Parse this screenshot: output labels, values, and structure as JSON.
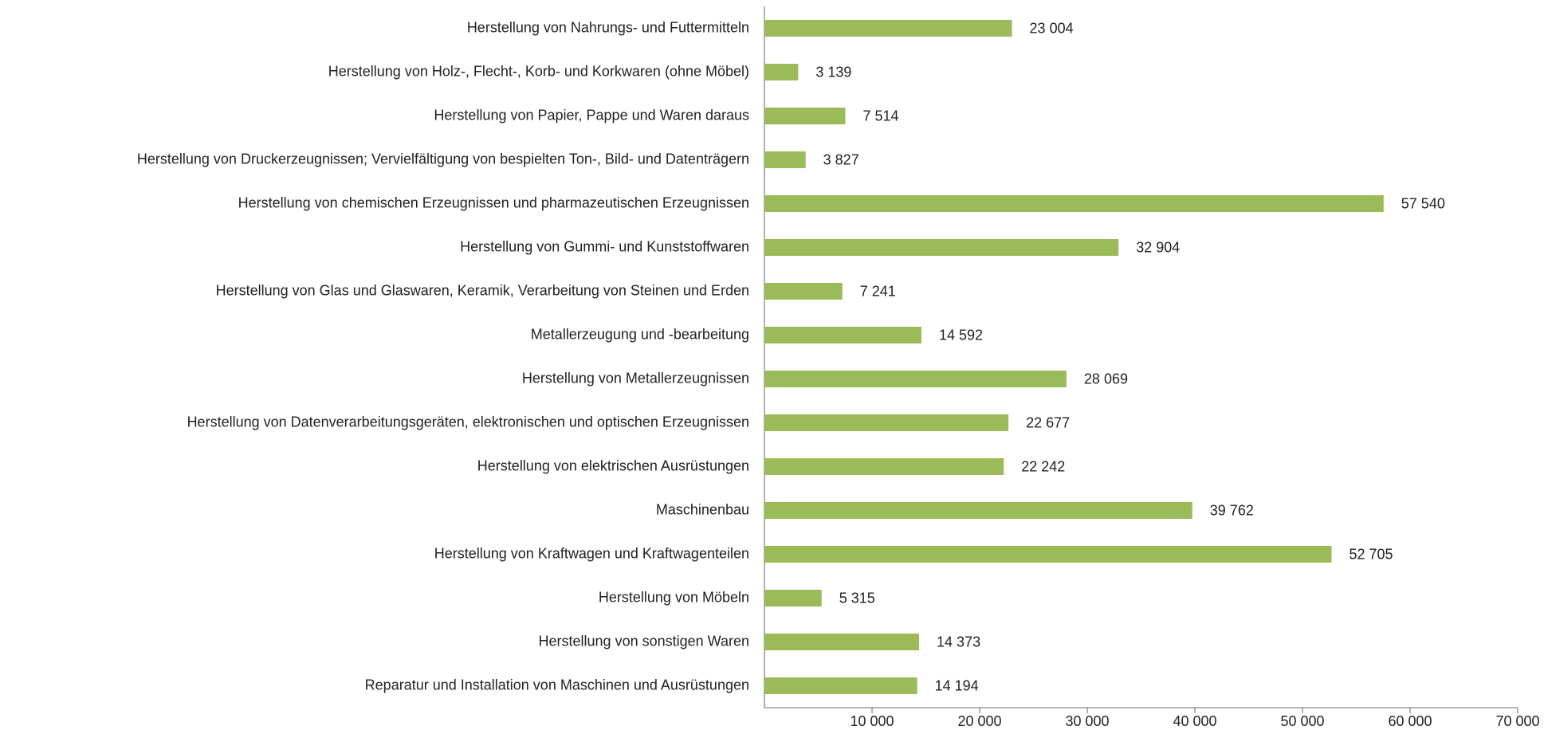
{
  "chart_data": {
    "type": "barh",
    "categories": [
      "Herstellung von Nahrungs- und Futtermitteln",
      "Herstellung von Holz-, Flecht-, Korb- und Korkwaren (ohne Möbel)",
      "Herstellung von Papier, Pappe und Waren daraus",
      "Herstellung von Druckerzeugnissen; Vervielfältigung von bespielten Ton-, Bild- und Datenträgern",
      "Herstellung von chemischen Erzeugnissen und pharmazeutischen Erzeugnissen",
      "Herstellung von Gummi- und Kunststoffwaren",
      "Herstellung von Glas und Glaswaren, Keramik, Verarbeitung von Steinen und Erden",
      "Metallerzeugung und -bearbeitung",
      "Herstellung von Metallerzeugnissen",
      "Herstellung von Datenverarbeitungsgeräten, elektronischen und optischen Erzeugnissen",
      "Herstellung von elektrischen Ausrüstungen",
      "Maschinenbau",
      "Herstellung von Kraftwagen und Kraftwagenteilen",
      "Herstellung von Möbeln",
      "Herstellung von sonstigen Waren",
      "Reparatur und Installation von Maschinen und Ausrüstungen"
    ],
    "values": [
      23004,
      3139,
      7514,
      3827,
      57540,
      32904,
      7241,
      14592,
      28069,
      22677,
      22242,
      39762,
      52705,
      5315,
      14373,
      14194
    ],
    "value_labels": [
      "23 004",
      "3 139",
      "7 514",
      "3 827",
      "57 540",
      "32 904",
      "7 241",
      "14 592",
      "28 069",
      "22 677",
      "22 242",
      "39 762",
      "52 705",
      "5 315",
      "14 373",
      "14 194"
    ],
    "color": "#9bbb59",
    "xlim": [
      0,
      70000
    ],
    "xticks": [
      {
        "value": 10000,
        "label": "10 000"
      },
      {
        "value": 20000,
        "label": "20 000"
      },
      {
        "value": 30000,
        "label": "30 000"
      },
      {
        "value": 40000,
        "label": "40 000"
      },
      {
        "value": 50000,
        "label": "50 000"
      },
      {
        "value": 60000,
        "label": "60 000"
      },
      {
        "value": 70000,
        "label": "70 000"
      }
    ]
  }
}
